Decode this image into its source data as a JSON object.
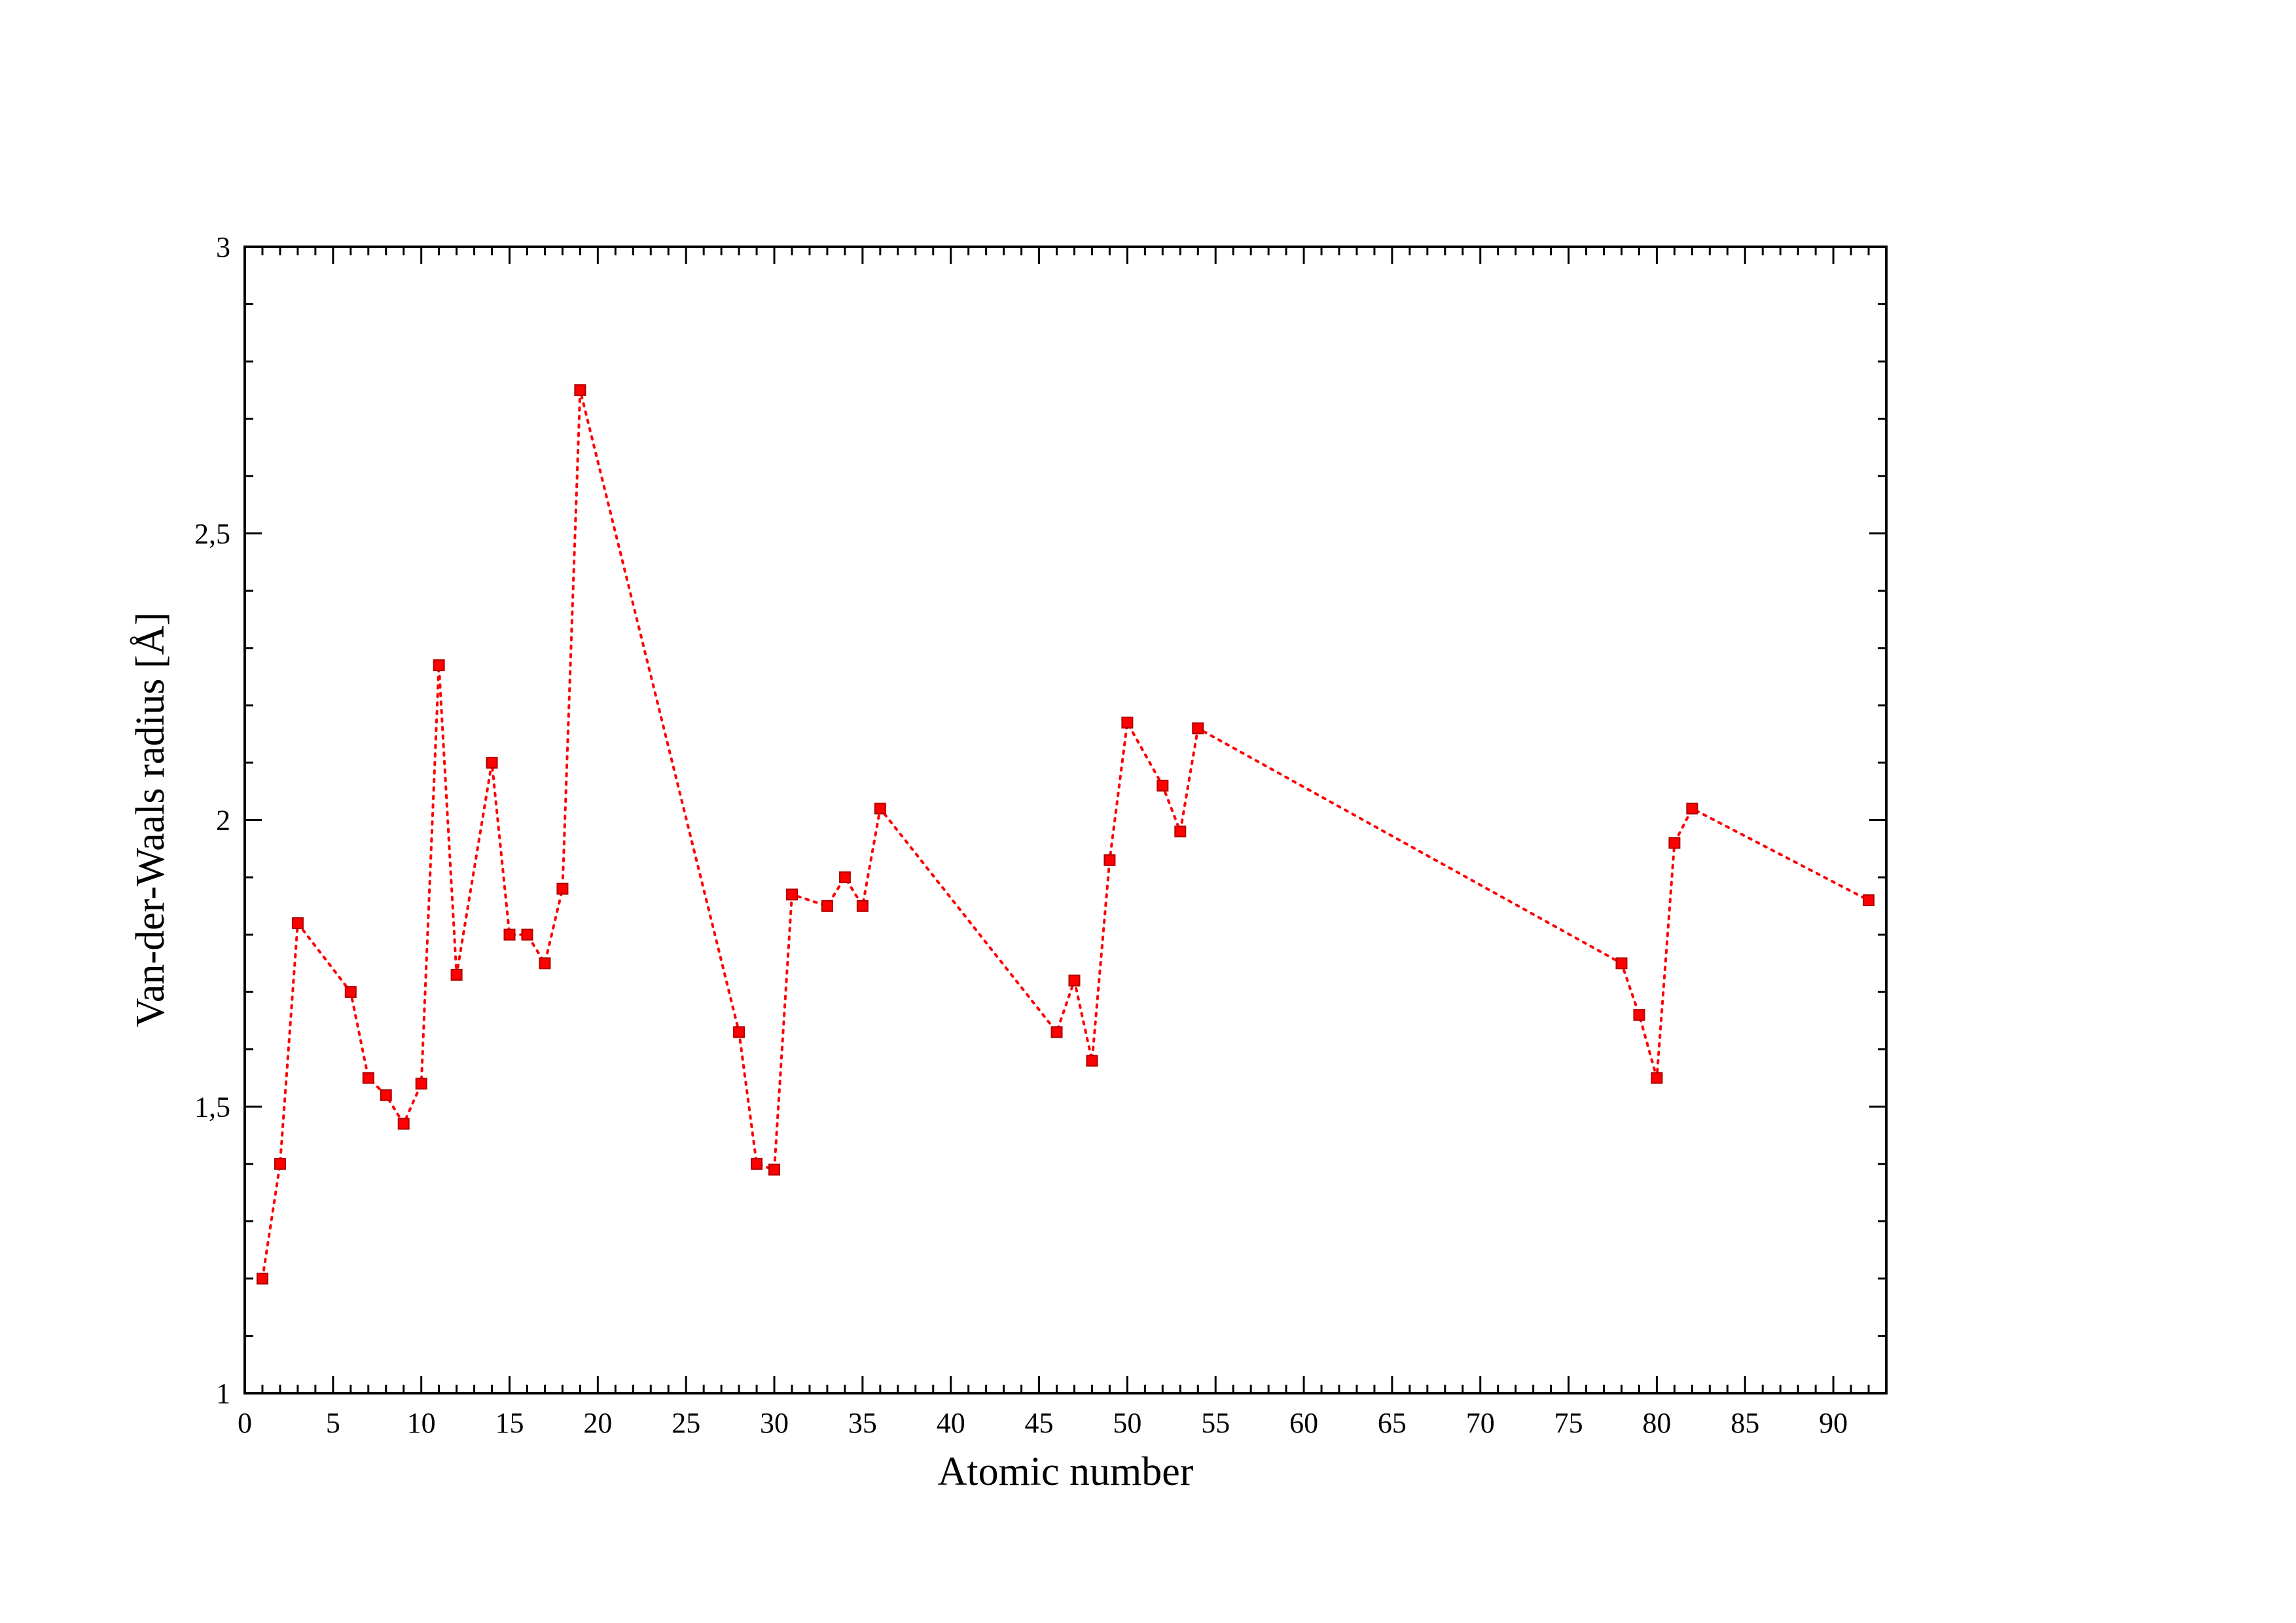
{
  "chart_data": {
    "type": "scatter",
    "title": "",
    "xlabel": "Atomic number",
    "ylabel": "Van-der-Waals radius [Å]",
    "xlim": [
      0,
      93
    ],
    "ylim": [
      1,
      3
    ],
    "x_ticks": [
      "0",
      "5",
      "10",
      "15",
      "20",
      "25",
      "30",
      "35",
      "40",
      "45",
      "50",
      "55",
      "60",
      "65",
      "70",
      "75",
      "80",
      "85",
      "90"
    ],
    "y_ticks": [
      "1",
      "1,5",
      "2",
      "2,5",
      "3"
    ],
    "grid": false,
    "legend": "none",
    "line_style": "dotted",
    "marker": "square",
    "color": "#ff0000",
    "series": [
      {
        "x": [
          1,
          2,
          3,
          6,
          7,
          8,
          9,
          10,
          11,
          12,
          14,
          15,
          16,
          17,
          18,
          19,
          28,
          29,
          30,
          31,
          33,
          34,
          35,
          36,
          46,
          47,
          48,
          49,
          50,
          52,
          53,
          54,
          78,
          79,
          80,
          81,
          82,
          92
        ],
        "values": [
          1.2,
          1.4,
          1.82,
          1.7,
          1.55,
          1.52,
          1.47,
          1.54,
          2.27,
          1.73,
          2.1,
          1.8,
          1.8,
          1.75,
          1.88,
          2.75,
          1.63,
          1.4,
          1.39,
          1.87,
          1.85,
          1.9,
          1.85,
          2.02,
          1.63,
          1.72,
          1.58,
          1.93,
          2.17,
          2.06,
          1.98,
          2.16,
          1.75,
          1.66,
          1.55,
          1.96,
          2.02,
          1.86
        ]
      }
    ]
  }
}
